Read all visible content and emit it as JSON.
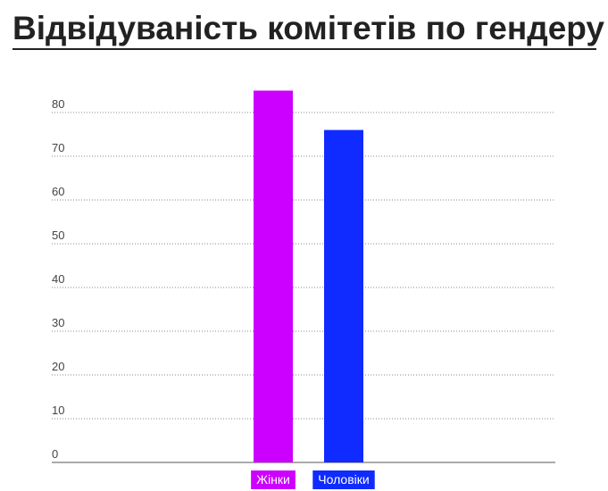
{
  "title": "Відвідуваність комітетів по гендеру",
  "chart_data": {
    "type": "bar",
    "title": "Відвідуваність комітетів по гендеру",
    "categories": [
      "Жінки",
      "Чоловіки"
    ],
    "values": [
      85,
      76
    ],
    "colors": [
      "#cc00ff",
      "#0f2bff"
    ],
    "ylim": [
      0,
      80
    ],
    "yticks": [
      0,
      10,
      20,
      30,
      40,
      50,
      60,
      70,
      80
    ],
    "grid": true,
    "xlabel": "",
    "ylabel": ""
  }
}
